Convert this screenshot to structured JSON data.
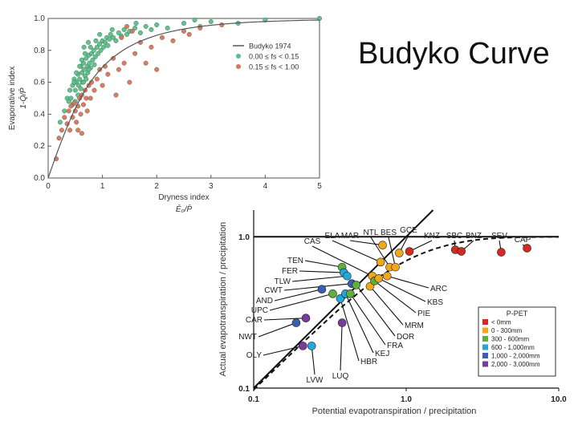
{
  "slide": {
    "title": "Budyko Curve"
  },
  "chart_data": [
    {
      "type": "scatter",
      "xlabel": "Dryness index",
      "xlabel_expr": "Ē₀/P̄",
      "ylabel": "Evaporative index",
      "ylabel_expr": "1-Q̄/P̄",
      "xlim": [
        0,
        5
      ],
      "ylim": [
        0,
        1
      ],
      "xticks": [
        "0",
        "1",
        "2",
        "3",
        "4",
        "5"
      ],
      "yticks": [
        "0.0",
        "0.2",
        "0.4",
        "0.6",
        "0.8",
        "1.0"
      ],
      "grid": false,
      "legend": "top-right",
      "legend_entries": [
        {
          "label": "Budyko 1974",
          "color": "#555555",
          "kind": "line"
        },
        {
          "label": "0.00 ≤ fs < 0.15",
          "color": "#5cbf8a",
          "kind": "point"
        },
        {
          "label": "0.15 ≤ fs < 1.00",
          "color": "#e0725a",
          "kind": "point"
        }
      ],
      "series": [
        {
          "name": "0.00 ≤ fs < 0.15",
          "color": "#5cbf8a",
          "points": [
            [
              0.22,
              0.35
            ],
            [
              0.3,
              0.42
            ],
            [
              0.35,
              0.5
            ],
            [
              0.38,
              0.48
            ],
            [
              0.4,
              0.55
            ],
            [
              0.42,
              0.5
            ],
            [
              0.45,
              0.58
            ],
            [
              0.48,
              0.62
            ],
            [
              0.5,
              0.55
            ],
            [
              0.52,
              0.6
            ],
            [
              0.55,
              0.65
            ],
            [
              0.56,
              0.58
            ],
            [
              0.58,
              0.62
            ],
            [
              0.6,
              0.7
            ],
            [
              0.62,
              0.66
            ],
            [
              0.63,
              0.6
            ],
            [
              0.65,
              0.72
            ],
            [
              0.66,
              0.68
            ],
            [
              0.68,
              0.64
            ],
            [
              0.7,
              0.75
            ],
            [
              0.72,
              0.7
            ],
            [
              0.73,
              0.66
            ],
            [
              0.75,
              0.77
            ],
            [
              0.76,
              0.72
            ],
            [
              0.78,
              0.69
            ],
            [
              0.8,
              0.78
            ],
            [
              0.82,
              0.74
            ],
            [
              0.84,
              0.8
            ],
            [
              0.85,
              0.71
            ],
            [
              0.87,
              0.76
            ],
            [
              0.9,
              0.82
            ],
            [
              0.92,
              0.78
            ],
            [
              0.95,
              0.84
            ],
            [
              0.97,
              0.8
            ],
            [
              1.0,
              0.86
            ],
            [
              1.02,
              0.82
            ],
            [
              1.05,
              0.85
            ],
            [
              1.08,
              0.88
            ],
            [
              1.1,
              0.83
            ],
            [
              1.13,
              0.87
            ],
            [
              1.15,
              0.9
            ],
            [
              1.2,
              0.88
            ],
            [
              1.25,
              0.86
            ],
            [
              1.3,
              0.91
            ],
            [
              1.35,
              0.89
            ],
            [
              1.4,
              0.93
            ],
            [
              1.45,
              0.9
            ],
            [
              1.5,
              0.92
            ],
            [
              1.6,
              0.94
            ],
            [
              1.7,
              0.91
            ],
            [
              1.8,
              0.95
            ],
            [
              1.9,
              0.93
            ],
            [
              2.0,
              0.96
            ],
            [
              2.2,
              0.94
            ],
            [
              2.5,
              0.97
            ],
            [
              2.8,
              0.95
            ],
            [
              3.0,
              0.98
            ],
            [
              3.5,
              0.97
            ],
            [
              4.0,
              0.99
            ],
            [
              5.0,
              1.0
            ],
            [
              0.55,
              0.52
            ],
            [
              0.6,
              0.56
            ],
            [
              0.65,
              0.6
            ],
            [
              0.7,
              0.62
            ],
            [
              0.75,
              0.68
            ],
            [
              0.5,
              0.48
            ],
            [
              0.45,
              0.46
            ],
            [
              0.62,
              0.74
            ],
            [
              0.68,
              0.78
            ],
            [
              0.78,
              0.82
            ],
            [
              0.88,
              0.86
            ],
            [
              0.58,
              0.7
            ],
            [
              0.52,
              0.66
            ],
            [
              0.48,
              0.6
            ],
            [
              0.66,
              0.82
            ],
            [
              0.74,
              0.85
            ],
            [
              0.95,
              0.9
            ],
            [
              1.18,
              0.93
            ],
            [
              2.7,
              0.99
            ],
            [
              1.62,
              0.97
            ]
          ]
        },
        {
          "name": "0.15 ≤ fs < 1.00",
          "color": "#e0725a",
          "points": [
            [
              0.15,
              0.12
            ],
            [
              0.2,
              0.25
            ],
            [
              0.25,
              0.3
            ],
            [
              0.3,
              0.38
            ],
            [
              0.35,
              0.34
            ],
            [
              0.38,
              0.42
            ],
            [
              0.4,
              0.3
            ],
            [
              0.42,
              0.45
            ],
            [
              0.45,
              0.38
            ],
            [
              0.48,
              0.47
            ],
            [
              0.5,
              0.42
            ],
            [
              0.52,
              0.35
            ],
            [
              0.55,
              0.45
            ],
            [
              0.58,
              0.5
            ],
            [
              0.6,
              0.4
            ],
            [
              0.62,
              0.52
            ],
            [
              0.65,
              0.46
            ],
            [
              0.68,
              0.55
            ],
            [
              0.7,
              0.5
            ],
            [
              0.72,
              0.42
            ],
            [
              0.75,
              0.58
            ],
            [
              0.78,
              0.5
            ],
            [
              0.8,
              0.6
            ],
            [
              0.85,
              0.55
            ],
            [
              0.9,
              0.62
            ],
            [
              0.95,
              0.68
            ],
            [
              1.0,
              0.58
            ],
            [
              1.05,
              0.7
            ],
            [
              1.1,
              0.65
            ],
            [
              1.2,
              0.75
            ],
            [
              1.25,
              0.52
            ],
            [
              1.3,
              0.68
            ],
            [
              1.4,
              0.72
            ],
            [
              1.5,
              0.6
            ],
            [
              1.6,
              0.78
            ],
            [
              1.7,
              0.85
            ],
            [
              1.8,
              0.72
            ],
            [
              1.9,
              0.82
            ],
            [
              2.0,
              0.68
            ],
            [
              2.1,
              0.88
            ],
            [
              2.3,
              0.86
            ],
            [
              2.5,
              0.92
            ],
            [
              2.6,
              0.9
            ],
            [
              2.8,
              0.94
            ],
            [
              3.2,
              0.96
            ],
            [
              1.45,
              0.95
            ],
            [
              1.55,
              0.92
            ],
            [
              1.35,
              0.88
            ],
            [
              0.55,
              0.3
            ],
            [
              0.62,
              0.28
            ]
          ]
        }
      ],
      "curve": {
        "name": "Budyko 1974"
      }
    },
    {
      "type": "scatter",
      "xscale": "log",
      "yscale": "log",
      "xlabel": "Potential evapotranspiration / precipitation",
      "ylabel": "Actual evapotranspiration / precipitation",
      "xlim": [
        0.1,
        10
      ],
      "ylim": [
        0.1,
        1.5
      ],
      "xticks": [
        "0.1",
        "1.0",
        "10.0"
      ],
      "yticks": [
        "0.1",
        "1.0"
      ],
      "legend": "bottom-right",
      "legend_title": "P-PET",
      "legend_entries": [
        {
          "label": "< 0mm",
          "color": "#d42a22"
        },
        {
          "label": "0 - 300mm",
          "color": "#f0a81a"
        },
        {
          "label": "300 - 600mm",
          "color": "#5db03a"
        },
        {
          "label": "600 - 1,000mm",
          "color": "#25a6d9"
        },
        {
          "label": "1,000 - 2,000mm",
          "color": "#3a5fb0"
        },
        {
          "label": "2,000 - 3,000mm",
          "color": "#7a3c9a"
        }
      ],
      "points": [
        {
          "label": "CAS",
          "x": 0.6,
          "y": 0.55,
          "color": "#f0a81a"
        },
        {
          "label": "ELA",
          "x": 0.68,
          "y": 0.68,
          "color": "#f0a81a"
        },
        {
          "label": "MAR",
          "x": 0.7,
          "y": 0.88,
          "color": "#f0a81a"
        },
        {
          "label": "NTL",
          "x": 0.78,
          "y": 0.63,
          "color": "#f0a81a"
        },
        {
          "label": "BES",
          "x": 0.85,
          "y": 0.63,
          "color": "#f0a81a"
        },
        {
          "label": "GCE",
          "x": 0.9,
          "y": 0.78,
          "color": "#f0a81a"
        },
        {
          "label": "KNZ",
          "x": 1.05,
          "y": 0.8,
          "color": "#d42a22"
        },
        {
          "label": "SBC",
          "x": 2.1,
          "y": 0.82,
          "color": "#d42a22"
        },
        {
          "label": "BNZ",
          "x": 2.3,
          "y": 0.8,
          "color": "#d42a22"
        },
        {
          "label": "SEV",
          "x": 4.2,
          "y": 0.79,
          "color": "#d42a22"
        },
        {
          "label": "CAP",
          "x": 6.2,
          "y": 0.84,
          "color": "#d42a22"
        },
        {
          "label": "TEN",
          "x": 0.38,
          "y": 0.63,
          "color": "#5db03a"
        },
        {
          "label": "FER",
          "x": 0.39,
          "y": 0.58,
          "color": "#25a6d9"
        },
        {
          "label": "TLW",
          "x": 0.41,
          "y": 0.55,
          "color": "#25a6d9"
        },
        {
          "label": "CWT",
          "x": 0.44,
          "y": 0.49,
          "color": "#3a5fb0"
        },
        {
          "label": "AND",
          "x": 0.28,
          "y": 0.45,
          "color": "#3a5fb0"
        },
        {
          "label": "UPC",
          "x": 0.33,
          "y": 0.42,
          "color": "#5db03a"
        },
        {
          "label": "CAR",
          "x": 0.22,
          "y": 0.29,
          "color": "#7a3c9a"
        },
        {
          "label": "NWT",
          "x": 0.19,
          "y": 0.27,
          "color": "#3a5fb0"
        },
        {
          "label": "OLY",
          "x": 0.21,
          "y": 0.19,
          "color": "#7a3c9a"
        },
        {
          "label": "LVW",
          "x": 0.24,
          "y": 0.19,
          "color": "#25a6d9"
        },
        {
          "label": "LUQ",
          "x": 0.38,
          "y": 0.27,
          "color": "#7a3c9a"
        },
        {
          "label": "HBR",
          "x": 0.37,
          "y": 0.39,
          "color": "#25a6d9"
        },
        {
          "label": "KEJ",
          "x": 0.4,
          "y": 0.42,
          "color": "#25a6d9"
        },
        {
          "label": "FRA",
          "x": 0.43,
          "y": 0.42,
          "color": "#5db03a"
        },
        {
          "label": "DOR",
          "x": 0.47,
          "y": 0.48,
          "color": "#5db03a"
        },
        {
          "label": "MRM",
          "x": 0.58,
          "y": 0.47,
          "color": "#f0a81a"
        },
        {
          "label": "PIE",
          "x": 0.62,
          "y": 0.51,
          "color": "#5db03a"
        },
        {
          "label": "KBS",
          "x": 0.66,
          "y": 0.53,
          "color": "#f0a81a"
        },
        {
          "label": "ARC",
          "x": 0.75,
          "y": 0.55,
          "color": "#f0a81a"
        }
      ]
    }
  ]
}
